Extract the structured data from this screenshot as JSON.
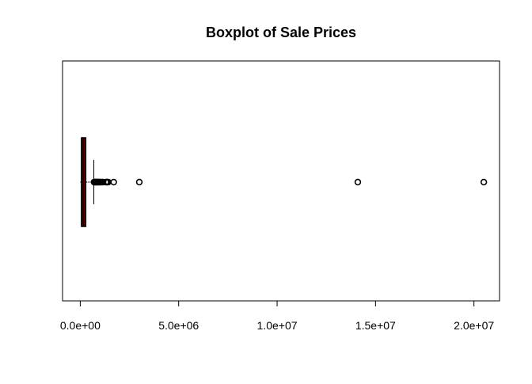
{
  "chart_data": {
    "type": "boxplot",
    "orientation": "horizontal",
    "title": "Boxplot of Sale Prices",
    "xlabel": "",
    "ylabel": "",
    "xlim": [
      -900000,
      21300000
    ],
    "x_ticks": [
      0,
      5000000,
      10000000,
      15000000,
      20000000
    ],
    "x_tick_labels": [
      "0.0e+00",
      "5.0e+06",
      "1.0e+07",
      "1.5e+07",
      "2.0e+07"
    ],
    "box": {
      "min": 0,
      "q1": 60000,
      "median": 160000,
      "q3": 280000,
      "whisker_high": 690000
    },
    "outliers": [
      700000,
      730000,
      760000,
      790000,
      820000,
      850000,
      880000,
      910000,
      940000,
      980000,
      1020000,
      1080000,
      1150000,
      1300000,
      1350000,
      1380000,
      1420000,
      1700000,
      3000000,
      14100000,
      20500000
    ],
    "colors": {
      "box_border": "#8b0000",
      "box_fill": "#8b0000",
      "median": "#000000",
      "whisker": "#000000",
      "outlier_stroke": "#000000",
      "axis": "#000000"
    },
    "grid": false,
    "legend": "none"
  }
}
